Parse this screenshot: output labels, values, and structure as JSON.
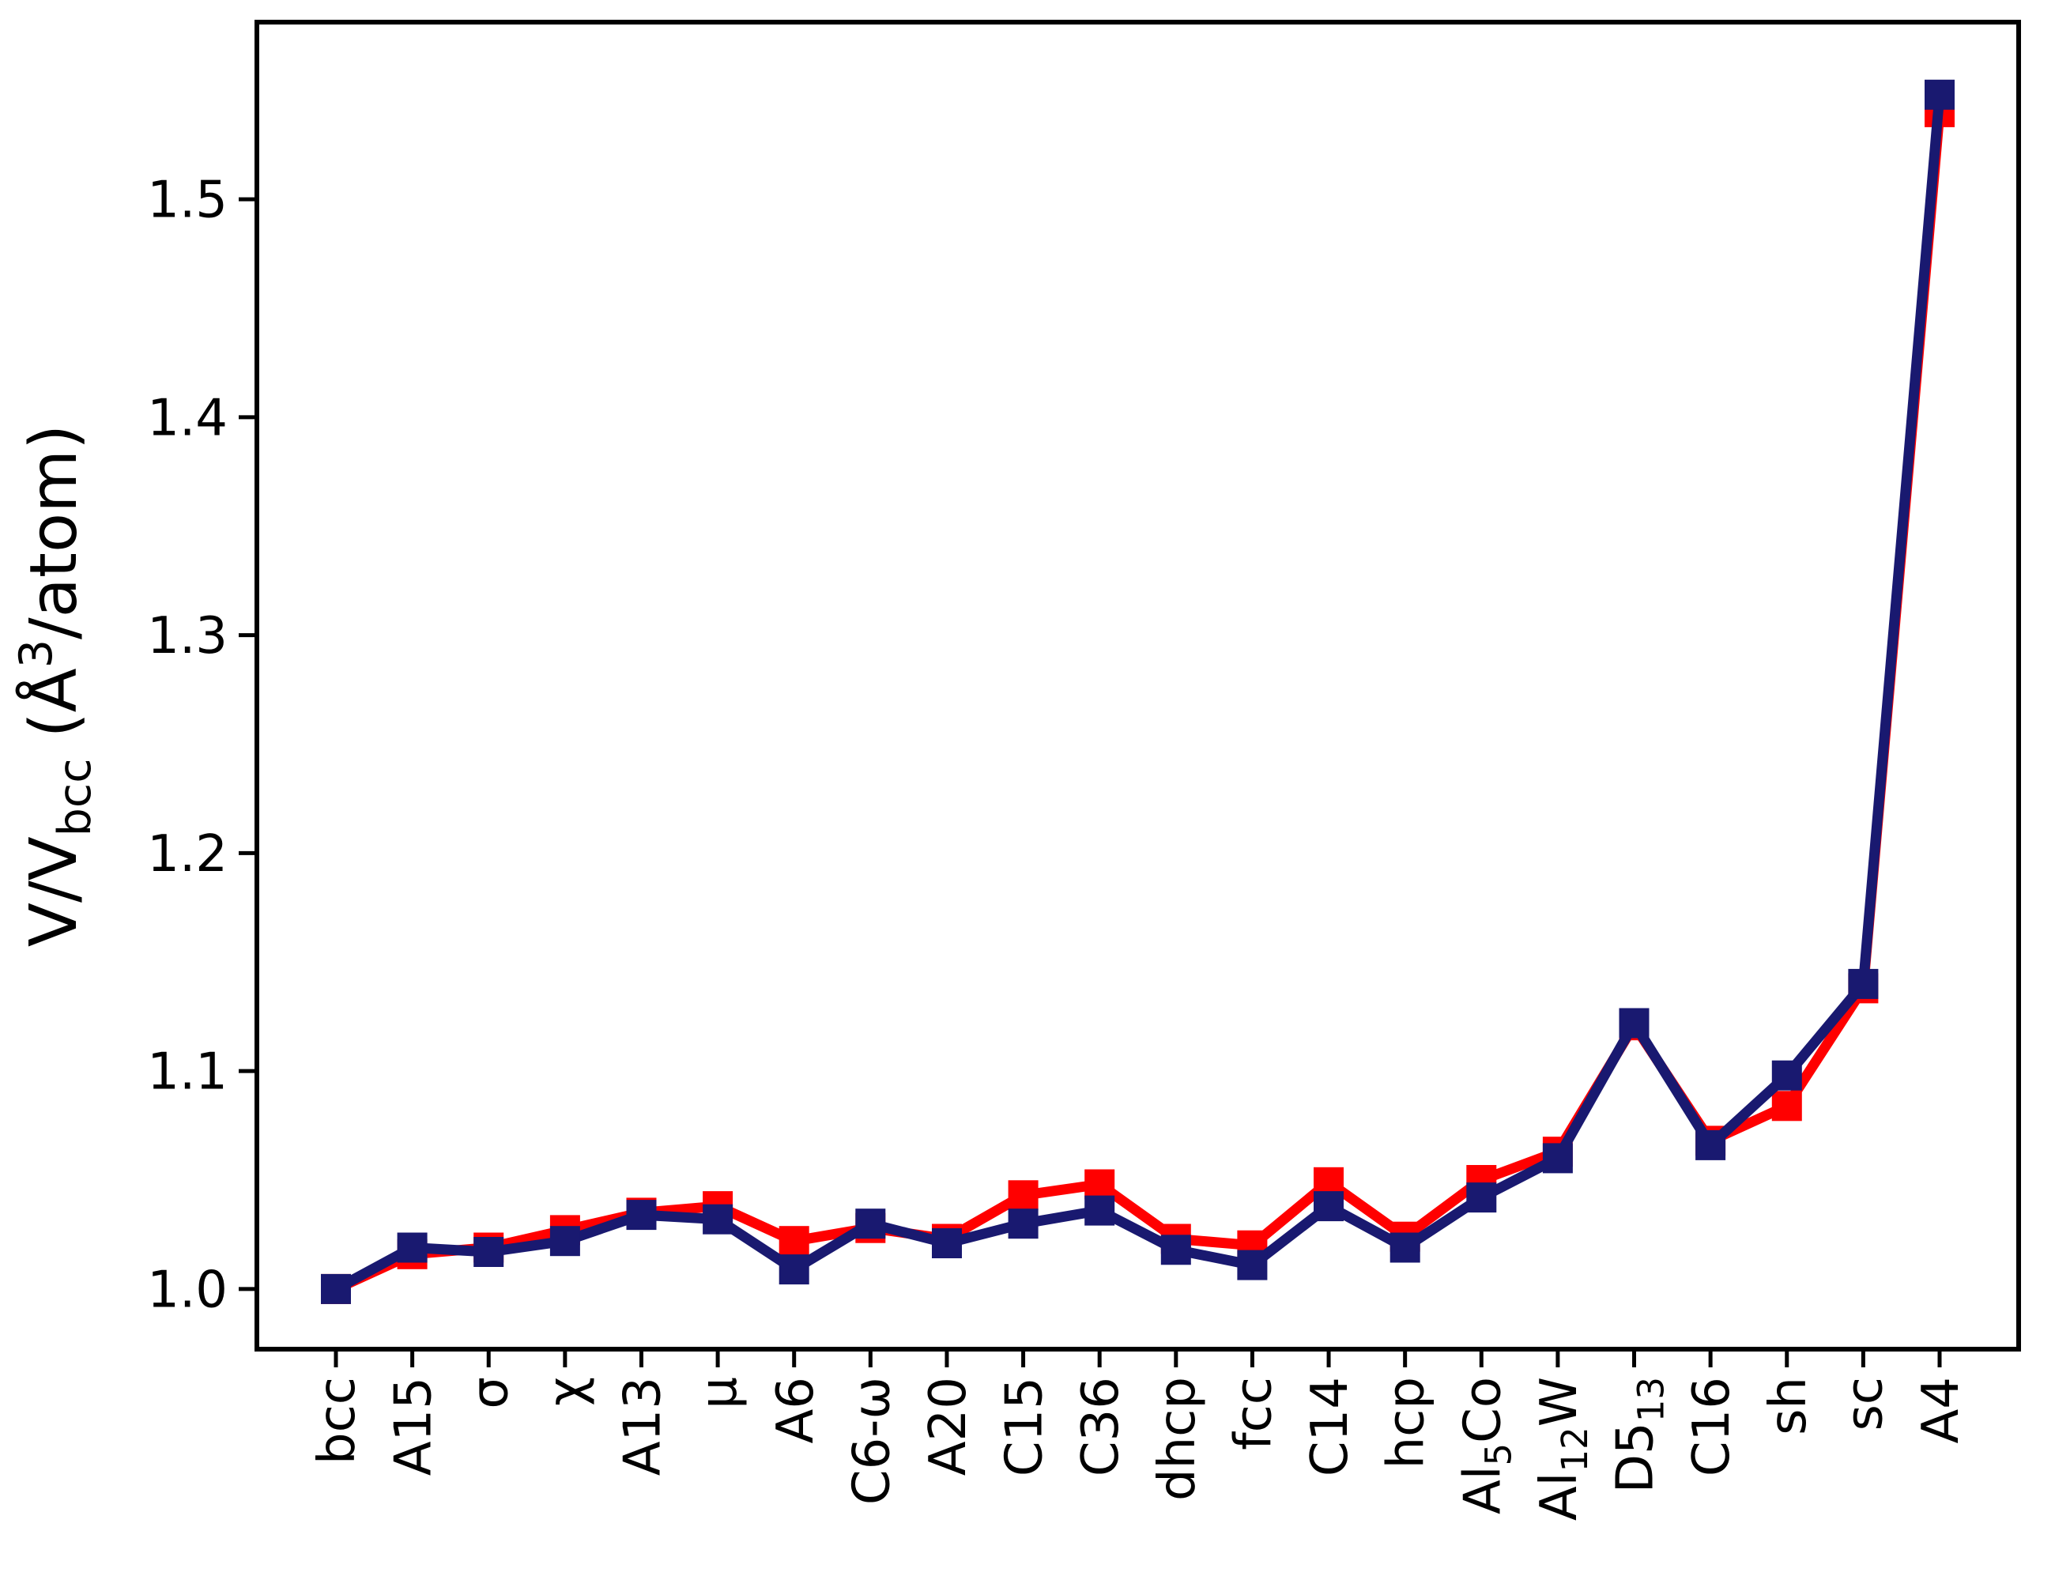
{
  "chart_data": {
    "type": "line",
    "title": "",
    "xlabel": "",
    "ylabel": "V/V_bcc (Å³/atom)",
    "ylabel_parts": [
      "V/V",
      {
        "sub": "bcc"
      },
      " (Å",
      {
        "sup": "3"
      },
      "/atom)"
    ],
    "categories": [
      "bcc",
      "A15",
      "σ",
      "χ",
      "A13",
      "μ",
      "A6",
      "C6-ω",
      "A20",
      "C15",
      "C36",
      "dhcp",
      "fcc",
      "C14",
      "hcp",
      "Al5Co",
      "Al12W",
      "D513",
      "C16",
      "sh",
      "sc",
      "A4"
    ],
    "category_parts": [
      [
        "bcc"
      ],
      [
        "A15"
      ],
      [
        "σ"
      ],
      [
        "χ"
      ],
      [
        "A13"
      ],
      [
        "μ"
      ],
      [
        "A6"
      ],
      [
        "C6-ω"
      ],
      [
        "A20"
      ],
      [
        "C15"
      ],
      [
        "C36"
      ],
      [
        "dhcp"
      ],
      [
        "fcc"
      ],
      [
        "C14"
      ],
      [
        "hcp"
      ],
      [
        "Al",
        {
          "sub": "5"
        },
        "Co"
      ],
      [
        "Al",
        {
          "sub": "12"
        },
        "W"
      ],
      [
        "D5",
        {
          "sub": "13"
        }
      ],
      [
        "C16"
      ],
      [
        "sh"
      ],
      [
        "sc"
      ],
      [
        "A4"
      ]
    ],
    "ytick_labels": [
      "1.0",
      "1.1",
      "1.2",
      "1.3",
      "1.4",
      "1.5"
    ],
    "ytick_values": [
      1.0,
      1.1,
      1.2,
      1.3,
      1.4,
      1.5
    ],
    "ylim": [
      0.9724,
      1.5813
    ],
    "xlim": [
      -1.035,
      22.035
    ],
    "grid": false,
    "legend_position": "none",
    "marker": "square",
    "colors": {
      "red_series": "#ff0000",
      "navy_series": "#191970",
      "axis": "#000000",
      "background": "#ffffff"
    },
    "series": [
      {
        "name": "red-series",
        "color": "#ff0000",
        "values": [
          1.0,
          1.016,
          1.019,
          1.027,
          1.035,
          1.038,
          1.022,
          1.028,
          1.023,
          1.043,
          1.048,
          1.023,
          1.02,
          1.049,
          1.024,
          1.05,
          1.063,
          1.121,
          1.068,
          1.084,
          1.138,
          1.54
        ]
      },
      {
        "name": "navy-series",
        "color": "#191970",
        "values": [
          1.0,
          1.019,
          1.017,
          1.022,
          1.034,
          1.032,
          1.009,
          1.03,
          1.021,
          1.03,
          1.036,
          1.018,
          1.011,
          1.038,
          1.019,
          1.042,
          1.06,
          1.122,
          1.066,
          1.098,
          1.14,
          1.548
        ]
      }
    ]
  }
}
